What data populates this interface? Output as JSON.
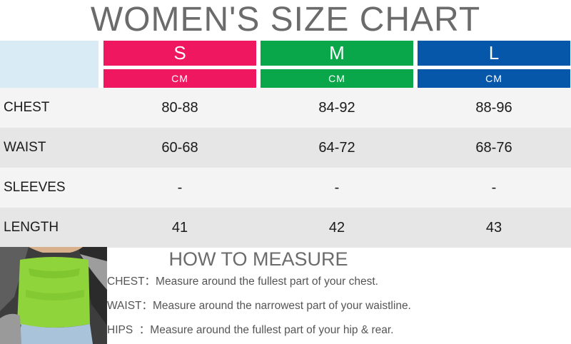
{
  "title": "WOMEN'S SIZE CHART",
  "sizes": [
    {
      "label": "S",
      "unit": "CM",
      "color": "#ef175f"
    },
    {
      "label": "M",
      "unit": "CM",
      "color": "#0aa74a"
    },
    {
      "label": "L",
      "unit": "CM",
      "color": "#0656aa"
    }
  ],
  "rows": [
    {
      "label": "CHEST",
      "values": [
        "80-88",
        "84-92",
        "88-96"
      ]
    },
    {
      "label": "WAIST",
      "values": [
        "60-68",
        "64-72",
        "68-76"
      ]
    },
    {
      "label": "SLEEVES",
      "values": [
        "-",
        "-",
        "-"
      ]
    },
    {
      "label": "LENGTH",
      "values": [
        "41",
        "42",
        "43"
      ]
    }
  ],
  "how_to_measure": {
    "title": "HOW TO MEASURE",
    "items": [
      {
        "key": "CHEST：",
        "desc": "Measure around the fullest part of your chest."
      },
      {
        "key": "WAIST：",
        "desc": "Measure around the narrowest part of your waistline."
      },
      {
        "key": "HIPS  ：",
        "desc": "Measure around the fullest part of your hip & rear."
      }
    ]
  },
  "colors": {
    "title_text": "#6b6b6b",
    "corner_cell": "#d9ecf5",
    "row_light": "#f4f4f4",
    "row_dark": "#e6e6e6"
  }
}
